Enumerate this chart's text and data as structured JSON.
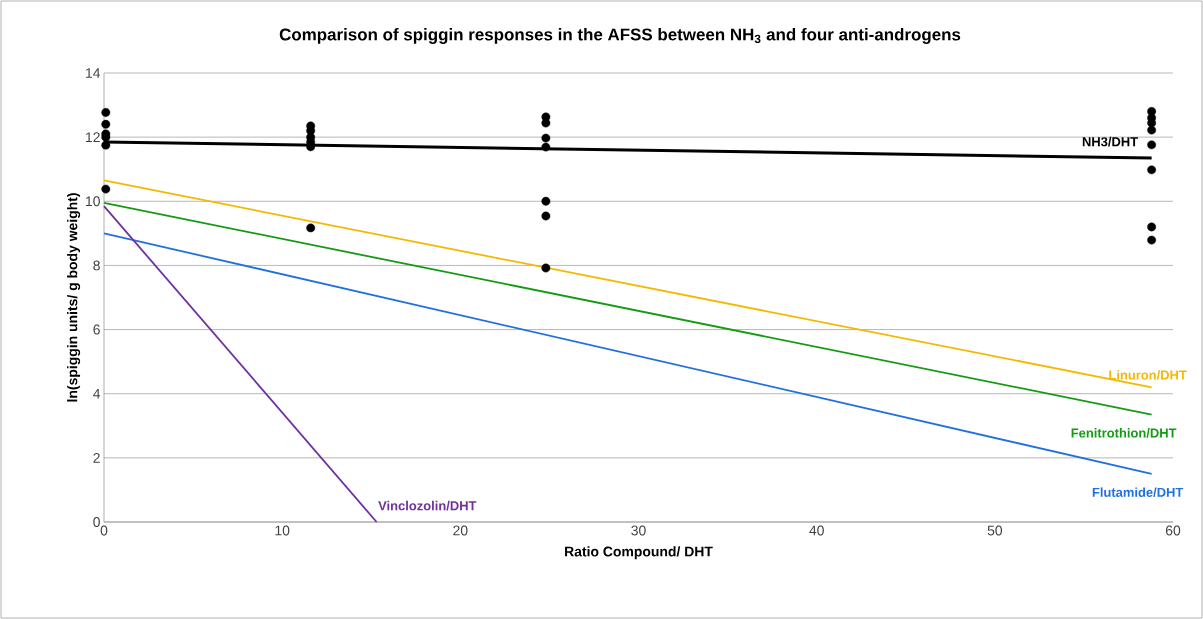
{
  "chart_data": {
    "type": "line",
    "title": "Comparison of spiggin responses in the AFSS between NH$_{3}$ and four anti-androgens",
    "xlabel": "Ratio Compound/  DHT",
    "ylabel": "ln(spiggin units/ g body weight)",
    "xlim": [
      0,
      60
    ],
    "xticks": [
      0,
      10,
      20,
      30,
      40,
      50,
      60
    ],
    "ylim": [
      0,
      14
    ],
    "yticks": [
      0,
      2,
      4,
      6,
      8,
      10,
      12,
      14
    ],
    "grid": "y",
    "line_style": "solid",
    "series": [
      {
        "type": "scatter",
        "marker": "circle",
        "color": "#000000",
        "x": [
          0.1,
          0.1,
          0.1,
          0.1,
          0.1,
          0.1,
          11.6,
          11.6,
          11.6,
          11.6,
          11.6,
          11.6,
          24.8,
          24.8,
          24.8,
          24.8,
          24.8,
          24.8,
          24.8,
          58.8,
          58.8,
          58.8,
          58.8,
          58.8,
          58.8,
          58.8,
          58.8
        ],
        "values": [
          12.77,
          12.4,
          12.1,
          12.0,
          11.75,
          10.38,
          12.35,
          12.2,
          12.0,
          11.85,
          11.7,
          9.17,
          12.63,
          12.44,
          11.97,
          11.69,
          10.0,
          9.54,
          7.92,
          12.8,
          12.6,
          12.44,
          12.22,
          11.76,
          10.98,
          9.2,
          8.79
        ]
      },
      {
        "name": "NH3/DHT",
        "color": "#000000",
        "x": [
          0,
          58.8
        ],
        "values": [
          11.85,
          11.35
        ]
      },
      {
        "name": "Linuron/DHT",
        "color": "#f5b800",
        "x": [
          0,
          58.8
        ],
        "values": [
          10.65,
          4.2
        ]
      },
      {
        "name": "Fenitrothion/DHT",
        "color": "#149a14",
        "x": [
          0,
          58.8
        ],
        "values": [
          9.95,
          3.35
        ]
      },
      {
        "name": "Flutamide/DHT",
        "color": "#2070e0",
        "x": [
          0,
          58.8
        ],
        "values": [
          9.0,
          1.5
        ]
      },
      {
        "name": "Vinclozolin/DHT",
        "color": "#7030a0",
        "x": [
          0,
          15.3
        ],
        "values": [
          9.85,
          0
        ]
      }
    ]
  }
}
